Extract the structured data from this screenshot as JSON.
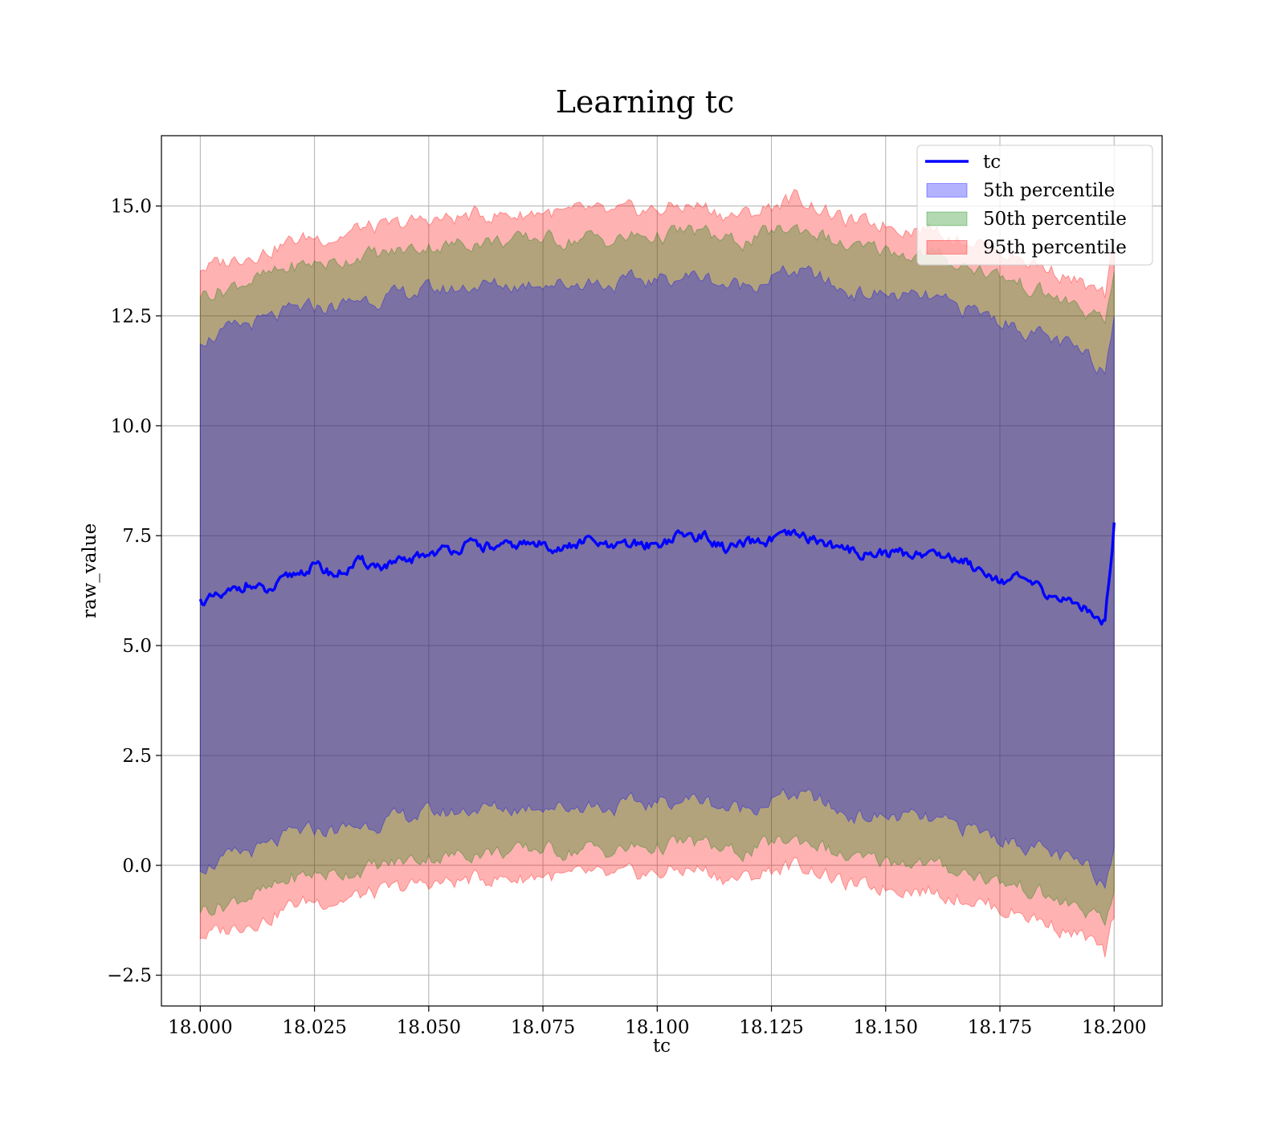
{
  "chart_data": {
    "type": "area",
    "title": "Learning tc",
    "xlabel": "tc",
    "ylabel": "raw_value",
    "xlim": [
      17.9915,
      18.2105
    ],
    "ylim": [
      -3.2,
      16.6
    ],
    "x_ticks": [
      18.0,
      18.025,
      18.05,
      18.075,
      18.1,
      18.125,
      18.15,
      18.175,
      18.2
    ],
    "x_tick_labels": [
      "18.000",
      "18.025",
      "18.050",
      "18.075",
      "18.100",
      "18.125",
      "18.150",
      "18.175",
      "18.200"
    ],
    "y_ticks": [
      -2.5,
      0.0,
      2.5,
      5.0,
      7.5,
      10.0,
      12.5,
      15.0
    ],
    "y_tick_labels": [
      "−2.5",
      "0.0",
      "2.5",
      "5.0",
      "7.5",
      "10.0",
      "12.5",
      "15.0"
    ],
    "grid": true,
    "legend_position": "top-right",
    "colors": {
      "line": "#0000ff",
      "band_5": "#0000ff",
      "band_50": "#008000",
      "band_95": "#ff0000"
    },
    "x": [
      18.0,
      18.005,
      18.01,
      18.015,
      18.02,
      18.025,
      18.03,
      18.035,
      18.04,
      18.045,
      18.05,
      18.055,
      18.06,
      18.065,
      18.07,
      18.075,
      18.08,
      18.085,
      18.09,
      18.095,
      18.1,
      18.105,
      18.11,
      18.115,
      18.12,
      18.125,
      18.13,
      18.135,
      18.14,
      18.145,
      18.15,
      18.155,
      18.16,
      18.165,
      18.17,
      18.175,
      18.18,
      18.185,
      18.19,
      18.195,
      18.198,
      18.2
    ],
    "series": [
      {
        "name": "tc",
        "kind": "line",
        "values": [
          6.0,
          6.1,
          6.4,
          6.2,
          6.6,
          6.8,
          6.6,
          6.9,
          6.8,
          6.9,
          7.1,
          7.2,
          7.3,
          7.2,
          7.3,
          7.3,
          7.2,
          7.4,
          7.2,
          7.3,
          7.3,
          7.5,
          7.5,
          7.2,
          7.3,
          7.4,
          7.5,
          7.4,
          7.2,
          7.1,
          7.1,
          7.1,
          7.1,
          7.0,
          6.8,
          6.5,
          6.5,
          6.2,
          6.0,
          5.8,
          5.5,
          7.8
        ]
      },
      {
        "name": "5th percentile",
        "kind": "band",
        "lower": [
          0.0,
          0.1,
          0.3,
          0.4,
          0.7,
          0.8,
          0.8,
          0.9,
          1.0,
          1.1,
          1.2,
          1.2,
          1.3,
          1.3,
          1.3,
          1.4,
          1.3,
          1.4,
          1.3,
          1.4,
          1.4,
          1.5,
          1.5,
          1.3,
          1.3,
          1.5,
          1.6,
          1.5,
          1.2,
          1.1,
          1.1,
          1.1,
          1.0,
          0.9,
          0.8,
          0.6,
          0.5,
          0.3,
          0.1,
          -0.1,
          -0.4,
          0.4
        ],
        "upper": [
          12.0,
          12.1,
          12.3,
          12.4,
          12.6,
          12.7,
          12.7,
          12.9,
          12.9,
          13.0,
          13.1,
          13.1,
          13.2,
          13.2,
          13.2,
          13.3,
          13.2,
          13.3,
          13.2,
          13.3,
          13.3,
          13.4,
          13.4,
          13.2,
          13.2,
          13.4,
          13.5,
          13.4,
          13.1,
          13.0,
          13.0,
          12.9,
          12.9,
          12.7,
          12.6,
          12.4,
          12.2,
          12.0,
          11.8,
          11.5,
          11.3,
          12.5
        ]
      },
      {
        "name": "50th percentile",
        "kind": "band",
        "lower": [
          -1.0,
          -0.9,
          -0.7,
          -0.6,
          -0.3,
          -0.2,
          -0.2,
          -0.1,
          0.0,
          0.1,
          0.2,
          0.2,
          0.3,
          0.3,
          0.3,
          0.4,
          0.3,
          0.4,
          0.3,
          0.4,
          0.4,
          0.5,
          0.5,
          0.3,
          0.3,
          0.5,
          0.6,
          0.5,
          0.2,
          0.1,
          0.1,
          0.1,
          0.0,
          -0.1,
          -0.2,
          -0.4,
          -0.5,
          -0.7,
          -0.9,
          -1.1,
          -1.4,
          -0.6
        ],
        "upper": [
          13.0,
          13.1,
          13.3,
          13.4,
          13.6,
          13.7,
          13.7,
          13.9,
          13.9,
          14.0,
          14.1,
          14.1,
          14.2,
          14.2,
          14.2,
          14.3,
          14.2,
          14.3,
          14.2,
          14.3,
          14.3,
          14.4,
          14.4,
          14.2,
          14.2,
          14.4,
          14.5,
          14.4,
          14.1,
          14.0,
          14.0,
          13.9,
          13.9,
          13.7,
          13.6,
          13.4,
          13.2,
          13.0,
          12.8,
          12.5,
          12.3,
          13.5
        ]
      },
      {
        "name": "95th percentile",
        "kind": "band",
        "lower": [
          -1.6,
          -1.5,
          -1.3,
          -1.2,
          -0.9,
          -0.8,
          -0.8,
          -0.7,
          -0.6,
          -0.5,
          -0.4,
          -0.4,
          -0.3,
          -0.3,
          -0.3,
          -0.2,
          -0.3,
          -0.2,
          -0.3,
          -0.2,
          -0.2,
          -0.1,
          -0.1,
          -0.3,
          -0.3,
          -0.1,
          0.0,
          -0.1,
          -0.4,
          -0.5,
          -0.5,
          -0.5,
          -0.6,
          -0.7,
          -0.8,
          -1.0,
          -1.1,
          -1.3,
          -1.5,
          -1.7,
          -2.1,
          -1.2
        ],
        "upper": [
          13.6,
          13.7,
          13.9,
          14.0,
          14.2,
          14.3,
          14.3,
          14.5,
          14.5,
          14.6,
          14.7,
          14.7,
          14.8,
          14.8,
          14.8,
          14.9,
          14.8,
          14.9,
          14.8,
          14.9,
          14.9,
          15.0,
          15.0,
          14.8,
          14.8,
          15.0,
          15.2,
          15.0,
          14.7,
          14.6,
          14.6,
          14.5,
          14.5,
          14.3,
          14.2,
          14.0,
          13.8,
          13.6,
          13.4,
          13.1,
          12.9,
          14.1
        ]
      }
    ]
  }
}
